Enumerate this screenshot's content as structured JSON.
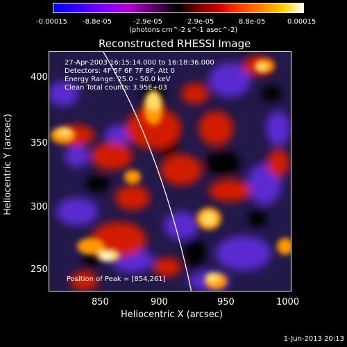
{
  "colorbar": {
    "ticks": [
      "-0.00015",
      "-8.8e-05",
      "-2.9e-05",
      "2.9e-05",
      "8.8e-05",
      "0.00015"
    ],
    "unit_label": "(photons cm^-2 s^-1 asec^-2)"
  },
  "plot": {
    "title": "Reconstructed RHESSI Image",
    "annotations": {
      "time": "27-Apr-2003 16:15:14.000 to 16:18:36.000",
      "detectors": "Detectors: 4F 5F 6F 7F 8F, Att 0",
      "energy": "Energy Range: 25.0 - 50.0 keV",
      "clean": "Clean      Total counts: 3.95E+03",
      "peak": "Position of Peak = [854,261]"
    },
    "xlabel": "Heliocentric X (arcsec)",
    "ylabel": "Heliocentric Y (arcsec)",
    "xticks": [
      "850",
      "900",
      "950",
      "1000"
    ],
    "yticks": [
      "400",
      "350",
      "300",
      "250"
    ]
  },
  "footer": {
    "timestamp": "1-Jun-2013 20:13"
  },
  "colors": {
    "background": "#000000",
    "limb_line": "#ffffff",
    "negative": "#6a28c8",
    "positive": "#ff3a00",
    "peak": "#ffffff"
  }
}
